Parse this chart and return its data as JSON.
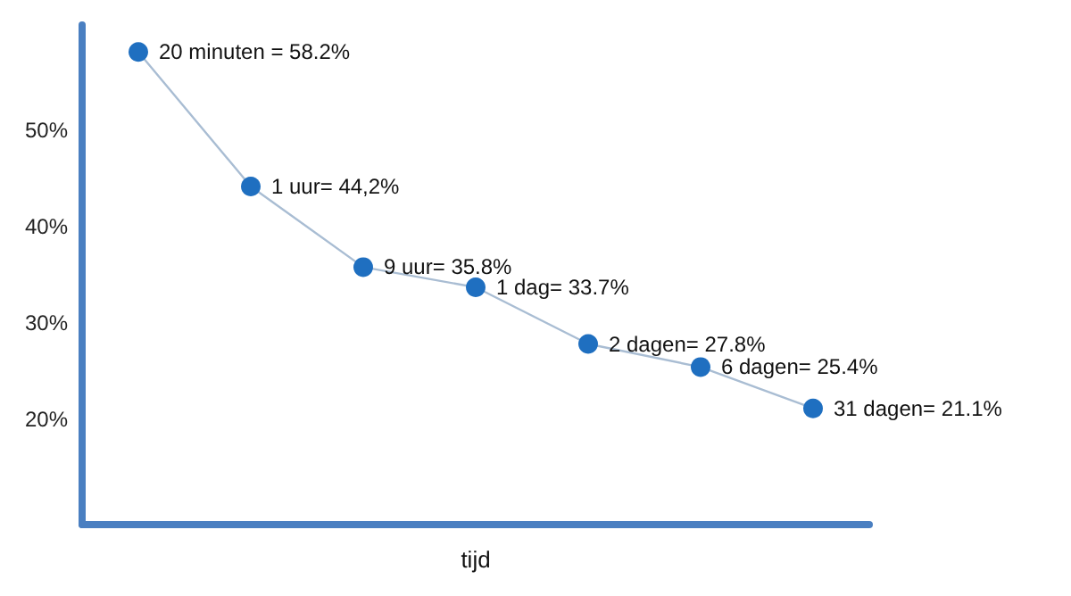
{
  "chart_data": {
    "type": "line",
    "xlabel": "tijd",
    "categories": [
      null,
      null,
      null,
      null,
      null,
      null,
      null
    ],
    "series": [
      {
        "color": "#1f6fc0",
        "values": [
          58.2,
          44.2,
          35.8,
          33.7,
          27.8,
          25.4,
          21.1
        ],
        "value_labels": [
          "20 minuten = 58.2%",
          "1 uur= 44,2%",
          "9 uur= 35.8%",
          "1 dag= 33.7%",
          "2 dagen= 27.8%",
          "6 dagen= 25.4%",
          "31 dagen= 21.1%"
        ]
      }
    ],
    "ylim": [
      9,
      61
    ],
    "yticks": [
      {
        "value": 20,
        "label": "20%"
      },
      {
        "value": 30,
        "label": "30%"
      },
      {
        "value": 40,
        "label": "40%"
      },
      {
        "value": 50,
        "label": "50%"
      }
    ],
    "grid": false,
    "marker": "circle",
    "line_style": "solid"
  }
}
